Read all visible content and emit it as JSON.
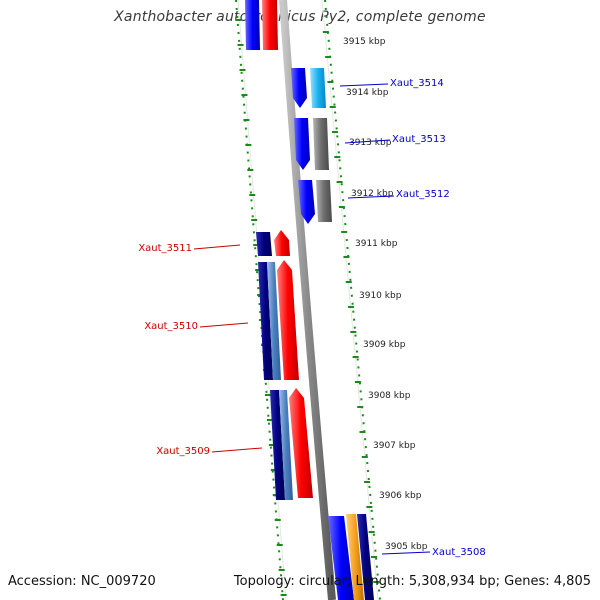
{
  "title": "Xanthobacter autotrophicus Py2, complete genome",
  "footer": {
    "accession": "Accession: NC_009720",
    "summary": "Topology: circular; Length: 5,308,934 bp; Genes: 4,805"
  },
  "kbp_ticks": [
    "3915 kbp",
    "3914 kbp",
    "3913 kbp",
    "3912 kbp",
    "3911 kbp",
    "3910 kbp",
    "3909 kbp",
    "3908 kbp",
    "3907 kbp",
    "3906 kbp",
    "3905 kbp"
  ],
  "gene_labels": [
    {
      "text": "Xaut_3514",
      "strand": "forward"
    },
    {
      "text": "Xaut_3513",
      "strand": "forward"
    },
    {
      "text": "Xaut_3512",
      "strand": "forward"
    },
    {
      "text": "Xaut_3511",
      "strand": "reverse"
    },
    {
      "text": "Xaut_3510",
      "strand": "reverse"
    },
    {
      "text": "Xaut_3509",
      "strand": "reverse"
    },
    {
      "text": "Xaut_3508",
      "strand": "forward"
    }
  ],
  "colors": {
    "forward_label": "#0000cc",
    "reverse_label": "#cc0000",
    "backbone": "#8c8c8c",
    "gc_skew_dots": "#1a8a1a",
    "gene_red": "#ff0000",
    "gene_blue": "#0000ff",
    "gene_navy": "#000080",
    "gene_steel": "#4a7fbf",
    "gene_cyan": "#1ab2f0",
    "gene_gray": "#6e6e6e",
    "gene_orange": "#f5a020"
  }
}
